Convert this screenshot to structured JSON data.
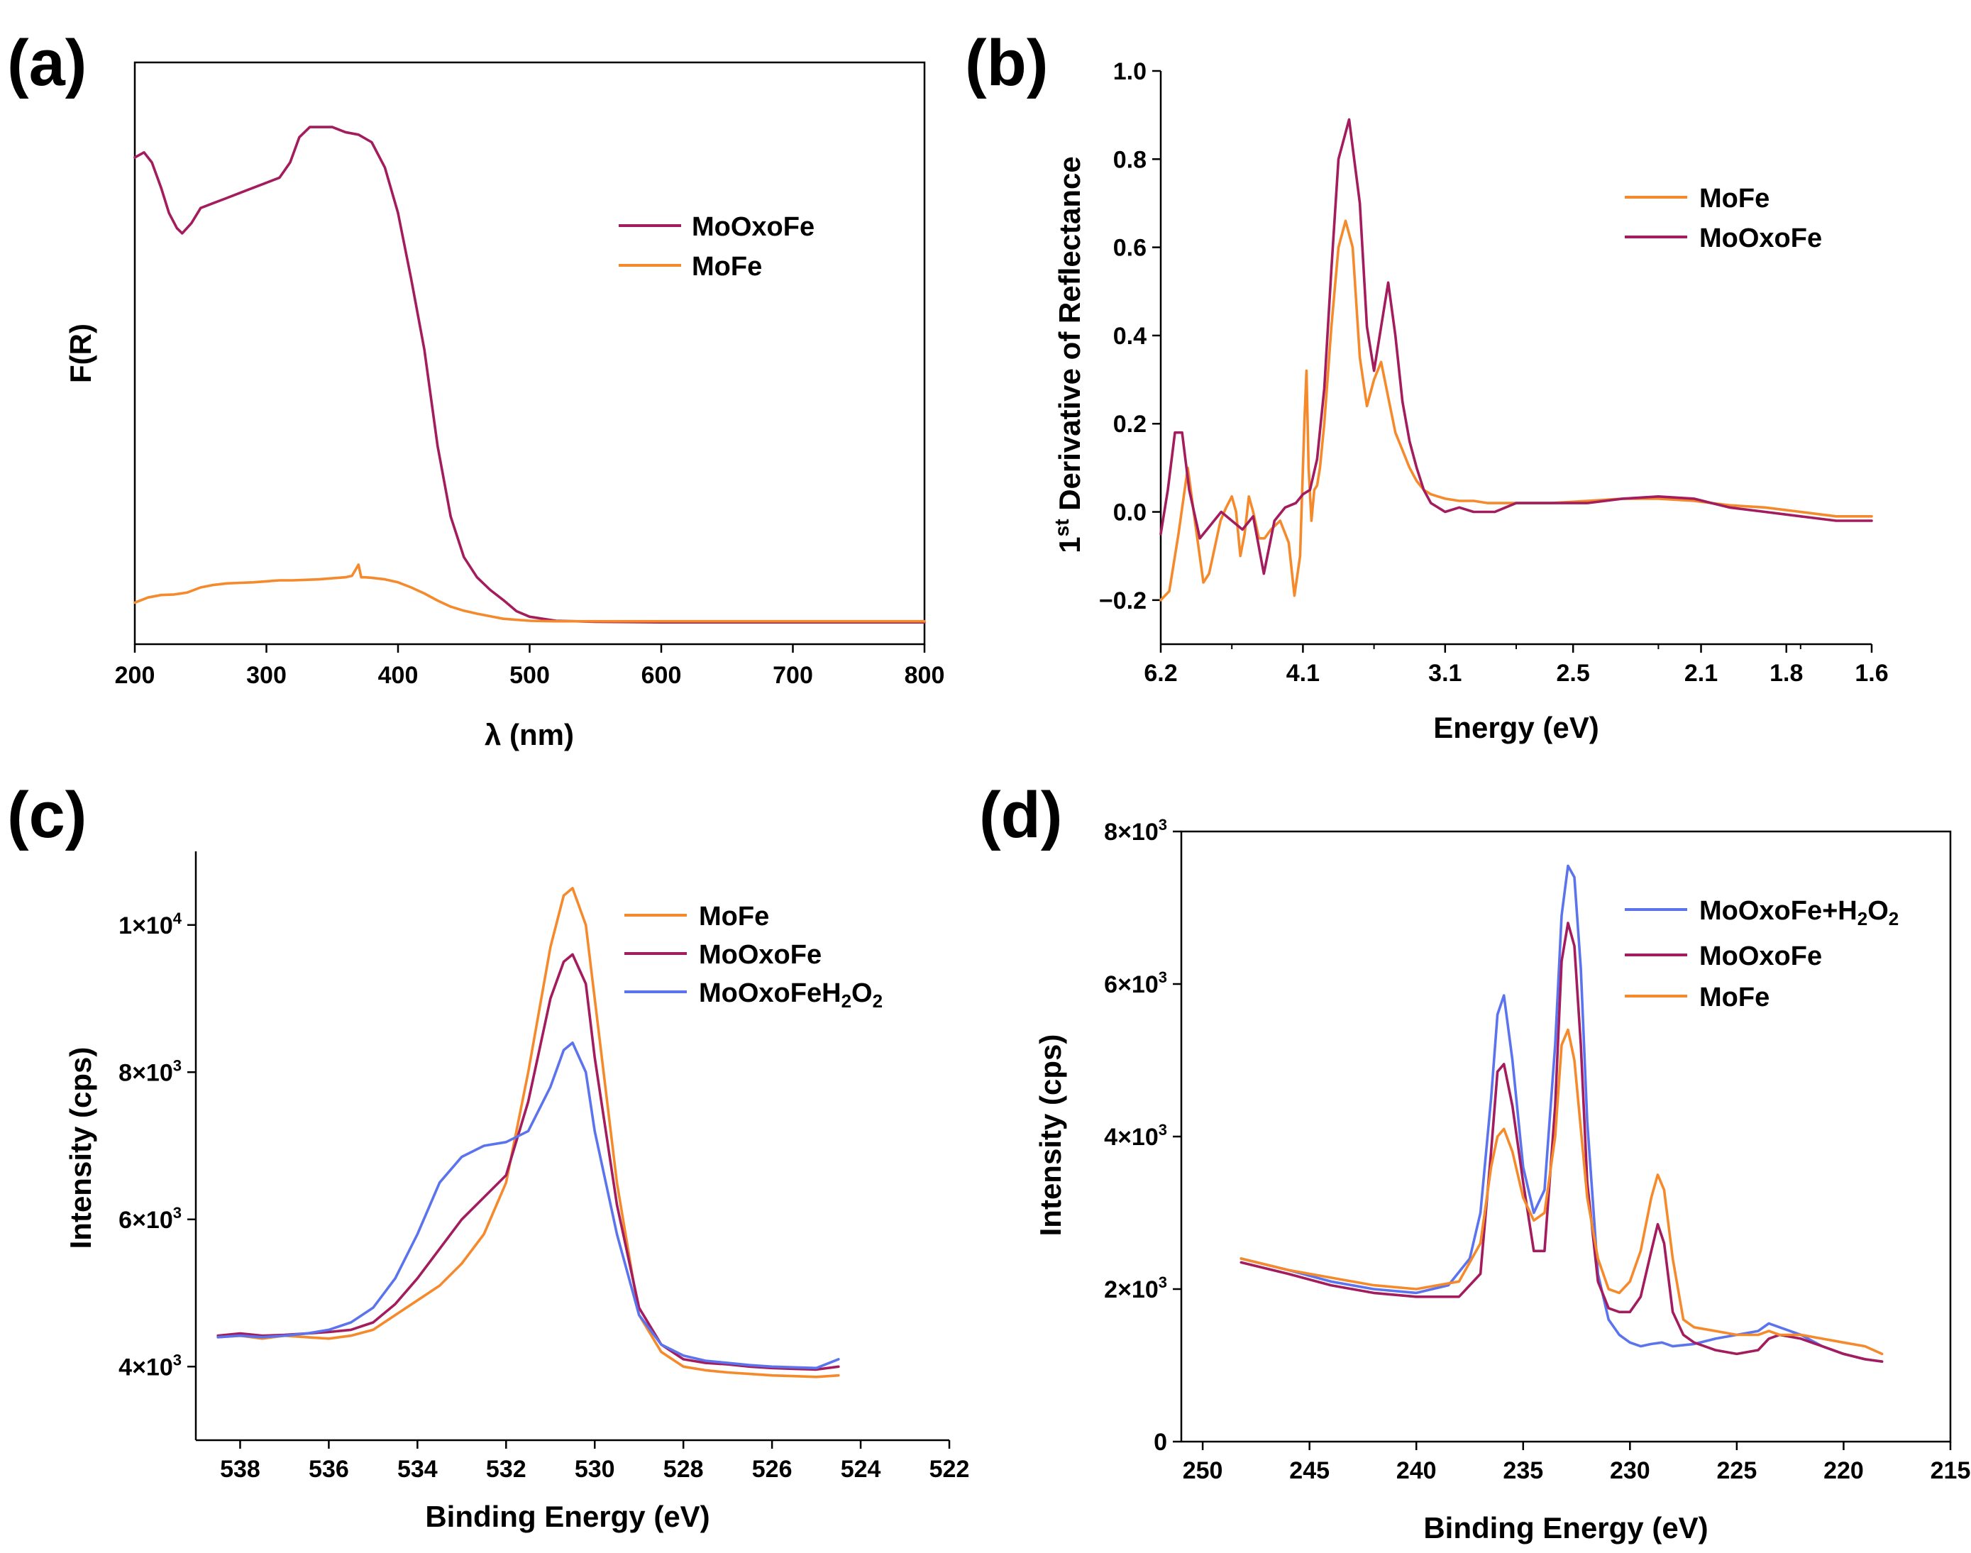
{
  "colors": {
    "mooxofe": "#a31c5d",
    "mofe": "#f58a2d",
    "h2o2": "#5b74ee"
  },
  "chart_data": [
    {
      "panel": "(a)",
      "type": "line",
      "title": "",
      "xlabel": "λ (nm)",
      "ylabel": "F(R)",
      "xlim": [
        200,
        800
      ],
      "ylim": [
        0,
        100
      ],
      "xticks": [
        "200",
        "300",
        "400",
        "500",
        "600",
        "700",
        "800"
      ],
      "yticks": [],
      "legend": "top-right",
      "series": [
        {
          "name": "MoOxoFe",
          "color": "#a31c5d",
          "x": [
            200,
            207,
            213,
            220,
            226,
            232,
            236,
            243,
            250,
            260,
            270,
            280,
            290,
            300,
            310,
            318,
            325,
            333,
            340,
            350,
            360,
            370,
            380,
            390,
            400,
            410,
            420,
            430,
            440,
            450,
            460,
            470,
            480,
            490,
            500,
            520,
            550,
            600,
            700,
            800
          ],
          "y": [
            93,
            94,
            92,
            87,
            82,
            79,
            78,
            80,
            83,
            84,
            85,
            86,
            87,
            88,
            89,
            92,
            97,
            99,
            99,
            99,
            98,
            97.5,
            96,
            91,
            82,
            69,
            55,
            36,
            22,
            14,
            10,
            7.5,
            5.5,
            3.3,
            2.2,
            1.4,
            1.2,
            1.1,
            1.1,
            1.1
          ]
        },
        {
          "name": "MoFe",
          "color": "#f58a2d",
          "x": [
            200,
            210,
            220,
            230,
            240,
            250,
            260,
            270,
            280,
            290,
            300,
            310,
            320,
            330,
            340,
            350,
            360,
            365,
            370,
            372,
            375,
            380,
            390,
            400,
            410,
            420,
            430,
            440,
            450,
            460,
            470,
            480,
            500,
            520,
            550,
            600,
            700,
            800
          ],
          "y": [
            5,
            6,
            6.5,
            6.6,
            7,
            8,
            8.5,
            8.8,
            8.9,
            9,
            9.2,
            9.4,
            9.4,
            9.5,
            9.6,
            9.8,
            10,
            10.3,
            12.5,
            10,
            10,
            9.9,
            9.6,
            9,
            8,
            6.8,
            5.4,
            4.2,
            3.4,
            2.8,
            2.3,
            1.8,
            1.4,
            1.3,
            1.3,
            1.3,
            1.3,
            1.3
          ]
        }
      ]
    },
    {
      "panel": "(b)",
      "type": "line",
      "title": "",
      "xlabel": "Energy (eV)",
      "ylabel": "1st Derivative of Reflectance",
      "ylabel_main": "1",
      "ylabel_sup": "st",
      "ylabel_rest": " Derivative of Reflectance",
      "xlim_note": "axis reversed, tick labels non-uniform",
      "xlim": [
        0,
        1
      ],
      "ylim": [
        -0.3,
        1.0
      ],
      "xticks": [
        "6.2",
        "4.1",
        "3.1",
        "2.5",
        "2.1",
        "1.8",
        "1.6"
      ],
      "yticks": [
        "-0.2",
        "0.0",
        "0.2",
        "0.4",
        "0.6",
        "0.8",
        "1.0"
      ],
      "legend": "top-right",
      "series": [
        {
          "name": "MoFe",
          "color": "#f58a2d",
          "x": [
            0,
            0.012,
            0.025,
            0.038,
            0.048,
            0.06,
            0.068,
            0.076,
            0.084,
            0.092,
            0.1,
            0.106,
            0.112,
            0.118,
            0.124,
            0.13,
            0.138,
            0.146,
            0.155,
            0.168,
            0.18,
            0.188,
            0.196,
            0.202,
            0.205,
            0.208,
            0.212,
            0.216,
            0.22,
            0.224,
            0.23,
            0.24,
            0.25,
            0.26,
            0.27,
            0.28,
            0.29,
            0.3,
            0.31,
            0.32,
            0.33,
            0.34,
            0.35,
            0.36,
            0.37,
            0.38,
            0.4,
            0.42,
            0.44,
            0.46,
            0.5,
            0.55,
            0.6,
            0.65,
            0.7,
            0.75,
            0.8,
            0.85,
            0.9,
            0.95,
            1.0
          ],
          "y": [
            -0.2,
            -0.18,
            -0.05,
            0.1,
            -0.02,
            -0.16,
            -0.14,
            -0.08,
            -0.02,
            0.01,
            0.035,
            0.0,
            -0.1,
            -0.05,
            0.035,
            0.0,
            -0.06,
            -0.06,
            -0.04,
            -0.02,
            -0.07,
            -0.19,
            -0.1,
            0.2,
            0.32,
            0.1,
            -0.02,
            0.05,
            0.06,
            0.1,
            0.2,
            0.42,
            0.6,
            0.66,
            0.6,
            0.35,
            0.24,
            0.3,
            0.34,
            0.26,
            0.18,
            0.14,
            0.1,
            0.07,
            0.05,
            0.04,
            0.03,
            0.025,
            0.025,
            0.02,
            0.02,
            0.02,
            0.025,
            0.03,
            0.03,
            0.025,
            0.015,
            0.01,
            0.0,
            -0.01,
            -0.01
          ]
        },
        {
          "name": "MoOxoFe",
          "color": "#a31c5d",
          "x": [
            0,
            0.01,
            0.02,
            0.03,
            0.04,
            0.055,
            0.07,
            0.085,
            0.1,
            0.115,
            0.13,
            0.145,
            0.16,
            0.175,
            0.19,
            0.2,
            0.21,
            0.22,
            0.23,
            0.24,
            0.25,
            0.265,
            0.28,
            0.29,
            0.3,
            0.31,
            0.32,
            0.33,
            0.34,
            0.35,
            0.36,
            0.37,
            0.38,
            0.4,
            0.42,
            0.44,
            0.47,
            0.5,
            0.55,
            0.6,
            0.65,
            0.7,
            0.75,
            0.8,
            0.85,
            0.9,
            0.95,
            1.0
          ],
          "y": [
            -0.05,
            0.05,
            0.18,
            0.18,
            0.05,
            -0.06,
            -0.03,
            0.0,
            -0.02,
            -0.04,
            -0.01,
            -0.14,
            -0.02,
            0.01,
            0.02,
            0.04,
            0.05,
            0.12,
            0.28,
            0.55,
            0.8,
            0.89,
            0.7,
            0.42,
            0.32,
            0.42,
            0.52,
            0.4,
            0.25,
            0.16,
            0.1,
            0.05,
            0.02,
            0.0,
            0.01,
            0.0,
            0.0,
            0.02,
            0.02,
            0.02,
            0.03,
            0.035,
            0.03,
            0.01,
            0.0,
            -0.01,
            -0.02,
            -0.02
          ]
        }
      ]
    },
    {
      "panel": "(c)",
      "type": "line",
      "title": "",
      "xlabel": "Binding Energy (eV)",
      "ylabel": "Intensity (cps)",
      "xlim": [
        539,
        522
      ],
      "ylim": [
        3000,
        11000
      ],
      "xticks": [
        "538",
        "536",
        "534",
        "532",
        "530",
        "528",
        "526",
        "524",
        "522"
      ],
      "yticks": [
        "4×10³",
        "6×10³",
        "8×10³",
        "1×10⁴"
      ],
      "ytick_mant": [
        "4×10",
        "6×10",
        "8×10",
        "1×10"
      ],
      "ytick_exp": [
        "3",
        "3",
        "3",
        "4"
      ],
      "legend": "top-right",
      "series": [
        {
          "name": "MoFe",
          "color": "#f58a2d",
          "x": [
            538.5,
            538,
            537.5,
            537,
            536.5,
            536,
            535.5,
            535,
            534.5,
            534,
            533.5,
            533,
            532.5,
            532,
            531.5,
            531,
            530.7,
            530.5,
            530.2,
            530,
            529.5,
            529,
            528.5,
            528,
            527.5,
            527,
            526.5,
            526,
            525.5,
            525,
            524.5
          ],
          "y": [
            4400,
            4420,
            4380,
            4420,
            4400,
            4380,
            4420,
            4500,
            4700,
            4900,
            5100,
            5400,
            5800,
            6500,
            8000,
            9700,
            10400,
            10500,
            10000,
            9000,
            6500,
            4700,
            4200,
            4000,
            3950,
            3920,
            3900,
            3880,
            3870,
            3860,
            3880
          ]
        },
        {
          "name": "MoOxoFe",
          "color": "#a31c5d",
          "x": [
            538.5,
            538,
            537.5,
            537,
            536.5,
            536,
            535.5,
            535,
            534.5,
            534,
            533.5,
            533,
            532.5,
            532,
            531.5,
            531,
            530.7,
            530.5,
            530.2,
            530,
            529.5,
            529,
            528.5,
            528,
            527.5,
            527,
            526.5,
            526,
            525.5,
            525,
            524.5
          ],
          "y": [
            4420,
            4450,
            4420,
            4430,
            4450,
            4470,
            4500,
            4600,
            4850,
            5200,
            5600,
            6000,
            6300,
            6600,
            7600,
            9000,
            9500,
            9600,
            9200,
            8200,
            6200,
            4800,
            4300,
            4100,
            4050,
            4030,
            4000,
            3980,
            3970,
            3960,
            4000
          ]
        },
        {
          "name": "MoOxoFeH2O2",
          "color": "#5b74ee",
          "x": [
            538.5,
            538,
            537.5,
            537,
            536.5,
            536,
            535.5,
            535,
            534.5,
            534,
            533.5,
            533,
            532.5,
            532,
            531.5,
            531,
            530.7,
            530.5,
            530.2,
            530,
            529.5,
            529,
            528.5,
            528,
            527.5,
            527,
            526.5,
            526,
            525.5,
            525,
            524.5
          ],
          "y": [
            4400,
            4420,
            4400,
            4420,
            4450,
            4500,
            4600,
            4800,
            5200,
            5800,
            6500,
            6850,
            7000,
            7050,
            7200,
            7800,
            8300,
            8400,
            8000,
            7200,
            5800,
            4700,
            4300,
            4150,
            4080,
            4050,
            4020,
            4000,
            3990,
            3980,
            4100
          ]
        }
      ]
    },
    {
      "panel": "(d)",
      "type": "line",
      "title": "",
      "xlabel": "Binding Energy (eV)",
      "ylabel": "Intensity (cps)",
      "xlim": [
        251,
        215
      ],
      "ylim": [
        0,
        8000
      ],
      "xticks": [
        "250",
        "245",
        "240",
        "235",
        "230",
        "225",
        "220",
        "215"
      ],
      "yticks": [
        "0",
        "2×10³",
        "4×10³",
        "6×10³",
        "8×10³"
      ],
      "ytick_mant": [
        "0",
        "2×10",
        "4×10",
        "6×10",
        "8×10"
      ],
      "ytick_exp": [
        "",
        "3",
        "3",
        "3",
        "3"
      ],
      "legend": "top-right",
      "legend_labels": {
        "h2o2_main": "MoOxoFe+H",
        "h2o2_sub1": "2",
        "h2o2_o": "O",
        "h2o2_sub2": "2"
      },
      "series": [
        {
          "name": "MoOxoFe+H2O2",
          "color": "#5b74ee",
          "x": [
            248.2,
            246,
            244,
            242,
            240,
            238.5,
            237.5,
            237,
            236.5,
            236.2,
            235.9,
            235.5,
            235,
            234.5,
            234,
            233.5,
            233.2,
            232.9,
            232.6,
            232.3,
            232,
            231.5,
            231,
            230.5,
            230,
            229.5,
            229,
            228.5,
            228,
            227,
            226,
            225,
            224,
            223.5,
            223,
            222,
            221,
            220,
            219,
            218.2
          ],
          "y": [
            2400,
            2250,
            2100,
            2000,
            1950,
            2050,
            2400,
            3000,
            4500,
            5600,
            5850,
            5000,
            3600,
            3000,
            3300,
            5200,
            6900,
            7550,
            7400,
            6200,
            4200,
            2200,
            1600,
            1400,
            1300,
            1250,
            1280,
            1300,
            1250,
            1280,
            1350,
            1400,
            1450,
            1550,
            1500,
            1400,
            1250,
            1150,
            1080,
            1050
          ]
        },
        {
          "name": "MoOxoFe",
          "color": "#a31c5d",
          "x": [
            248.2,
            246,
            244,
            242,
            240,
            238,
            237,
            236.5,
            236.2,
            235.9,
            235.5,
            235,
            234.5,
            234,
            233.5,
            233.2,
            232.9,
            232.6,
            232.3,
            232,
            231.5,
            231,
            230.5,
            230,
            229.5,
            229,
            228.7,
            228.4,
            228,
            227.5,
            227,
            226,
            225,
            224,
            223.5,
            223,
            222,
            221,
            220,
            219,
            218.2
          ],
          "y": [
            2350,
            2200,
            2050,
            1950,
            1900,
            1900,
            2200,
            3800,
            4850,
            4950,
            4400,
            3400,
            2500,
            2500,
            4400,
            6300,
            6800,
            6500,
            5200,
            3400,
            2100,
            1750,
            1700,
            1700,
            1900,
            2500,
            2850,
            2600,
            1700,
            1400,
            1300,
            1200,
            1150,
            1200,
            1350,
            1400,
            1350,
            1250,
            1150,
            1080,
            1050
          ]
        },
        {
          "name": "MoFe",
          "color": "#f58a2d",
          "x": [
            248.2,
            246,
            244,
            242,
            240,
            238,
            237,
            236.5,
            236.2,
            235.9,
            235.5,
            235,
            234.5,
            234,
            233.5,
            233.2,
            232.9,
            232.6,
            232.3,
            232,
            231.5,
            231,
            230.5,
            230,
            229.5,
            229,
            228.7,
            228.4,
            228,
            227.5,
            227,
            226,
            225,
            224,
            223.5,
            223,
            222,
            221,
            220,
            219,
            218.2
          ],
          "y": [
            2400,
            2250,
            2150,
            2050,
            2000,
            2100,
            2600,
            3600,
            4000,
            4100,
            3800,
            3200,
            2900,
            3000,
            4000,
            5200,
            5400,
            5000,
            4100,
            3200,
            2400,
            2000,
            1950,
            2100,
            2500,
            3200,
            3500,
            3300,
            2400,
            1600,
            1500,
            1450,
            1400,
            1400,
            1450,
            1400,
            1400,
            1350,
            1300,
            1250,
            1150
          ]
        }
      ]
    }
  ]
}
